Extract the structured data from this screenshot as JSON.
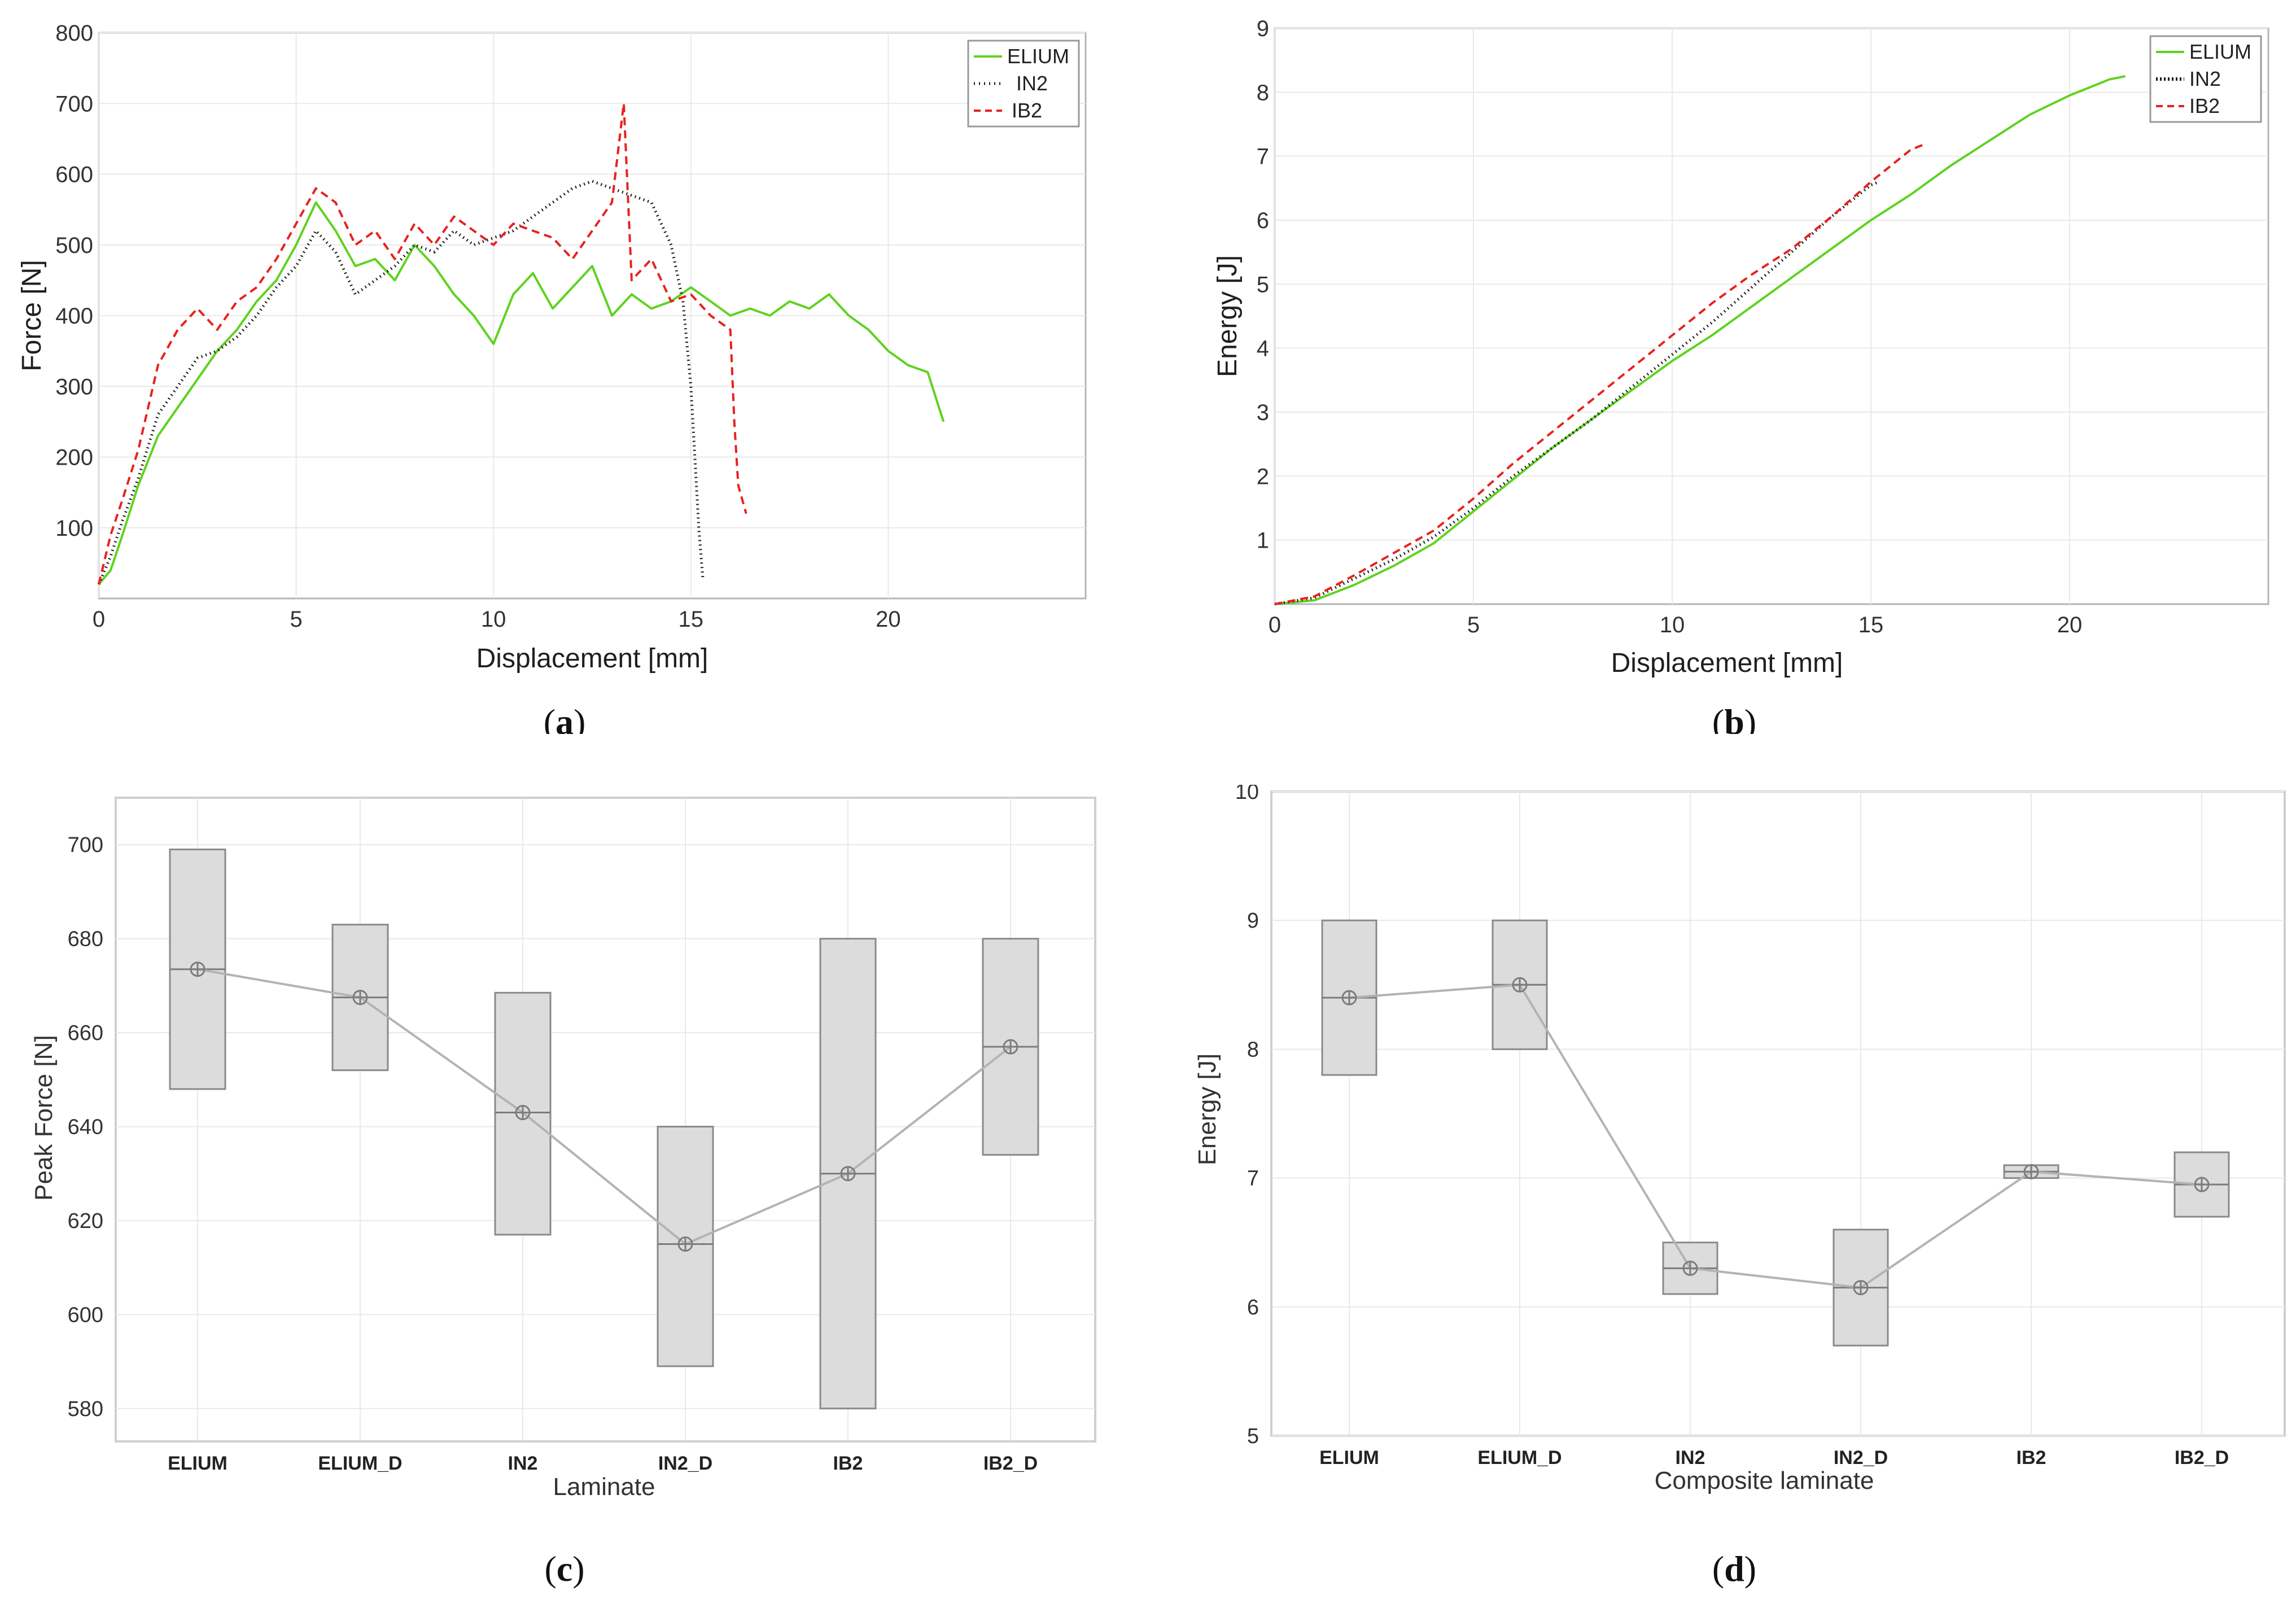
{
  "chart_data": [
    {
      "id": "a",
      "type": "line",
      "caption": "a",
      "xlabel": "Displacement [mm]",
      "ylabel": "Force [N]",
      "xlim": [
        0,
        25
      ],
      "ylim": [
        0,
        800
      ],
      "xticks": [
        0,
        5,
        10,
        15,
        20
      ],
      "yticks": [
        100,
        200,
        300,
        400,
        500,
        600,
        700,
        800
      ],
      "legend_position": "top-right",
      "series": [
        {
          "name": "ELIUM",
          "color": "#5fd21f",
          "style": "solid",
          "x": [
            0.0,
            0.3,
            0.6,
            1.0,
            1.5,
            2.0,
            2.5,
            3.0,
            3.5,
            4.0,
            4.5,
            5.0,
            5.5,
            6.0,
            6.5,
            7.0,
            7.5,
            8.0,
            8.5,
            9.0,
            9.5,
            10.0,
            10.5,
            11.0,
            11.5,
            12.0,
            12.5,
            13.0,
            13.5,
            14.0,
            14.5,
            15.0,
            15.5,
            16.0,
            16.5,
            17.0,
            17.5,
            18.0,
            18.5,
            19.0,
            19.5,
            20.0,
            20.5,
            21.0,
            21.4
          ],
          "y": [
            20,
            40,
            90,
            160,
            230,
            270,
            310,
            350,
            380,
            420,
            450,
            500,
            560,
            520,
            470,
            480,
            450,
            500,
            470,
            430,
            400,
            360,
            430,
            460,
            410,
            440,
            470,
            400,
            430,
            410,
            420,
            440,
            420,
            400,
            410,
            400,
            420,
            410,
            430,
            400,
            380,
            350,
            330,
            320,
            250
          ]
        },
        {
          "name": "IN2",
          "color": "#1a1a1a",
          "style": "dotted",
          "x": [
            0.0,
            0.3,
            0.6,
            1.0,
            1.5,
            2.0,
            2.5,
            3.0,
            3.5,
            4.0,
            4.5,
            5.0,
            5.5,
            6.0,
            6.5,
            7.0,
            7.5,
            8.0,
            8.5,
            9.0,
            9.5,
            10.0,
            10.5,
            11.0,
            11.5,
            12.0,
            12.5,
            13.0,
            13.5,
            14.0,
            14.5,
            14.8,
            15.0,
            15.1,
            15.2,
            15.3
          ],
          "y": [
            20,
            60,
            110,
            170,
            260,
            300,
            340,
            350,
            370,
            400,
            440,
            470,
            520,
            490,
            430,
            450,
            470,
            500,
            490,
            520,
            500,
            510,
            520,
            540,
            560,
            580,
            590,
            580,
            570,
            560,
            500,
            420,
            300,
            200,
            100,
            30
          ]
        },
        {
          "name": "IB2",
          "color": "#e8211f",
          "style": "dashed",
          "x": [
            0.0,
            0.3,
            0.6,
            1.0,
            1.5,
            2.0,
            2.5,
            3.0,
            3.5,
            4.0,
            4.5,
            5.0,
            5.5,
            6.0,
            6.5,
            7.0,
            7.5,
            8.0,
            8.5,
            9.0,
            9.5,
            10.0,
            10.5,
            11.0,
            11.5,
            12.0,
            12.5,
            13.0,
            13.3,
            13.5,
            14.0,
            14.5,
            15.0,
            15.5,
            16.0,
            16.1,
            16.2,
            16.4
          ],
          "y": [
            20,
            90,
            140,
            210,
            330,
            380,
            410,
            380,
            420,
            440,
            480,
            530,
            580,
            560,
            500,
            520,
            480,
            530,
            500,
            540,
            520,
            500,
            530,
            520,
            510,
            480,
            520,
            560,
            700,
            450,
            480,
            420,
            430,
            400,
            380,
            250,
            160,
            120
          ]
        }
      ]
    },
    {
      "id": "b",
      "type": "line",
      "caption": "b",
      "xlabel": "Displacement [mm]",
      "ylabel": "Energy [J]",
      "xlim": [
        0,
        25
      ],
      "ylim": [
        0,
        9
      ],
      "xticks": [
        0,
        5,
        10,
        15,
        20
      ],
      "yticks": [
        1,
        2,
        3,
        4,
        5,
        6,
        7,
        8,
        9
      ],
      "legend_position": "top-right",
      "series": [
        {
          "name": "ELIUM",
          "color": "#5fd21f",
          "style": "solid",
          "x": [
            0,
            1,
            2,
            3,
            4,
            5,
            6,
            7,
            8,
            9,
            10,
            11,
            12,
            13,
            14,
            15,
            16,
            17,
            18,
            19,
            20,
            21,
            21.4
          ],
          "y": [
            0,
            0.06,
            0.3,
            0.6,
            0.95,
            1.45,
            1.95,
            2.45,
            2.9,
            3.35,
            3.8,
            4.2,
            4.65,
            5.1,
            5.55,
            6.0,
            6.4,
            6.85,
            7.25,
            7.65,
            7.95,
            8.2,
            8.25
          ]
        },
        {
          "name": "IN2",
          "color": "#1a1a1a",
          "style": "dotted",
          "x": [
            0,
            1,
            2,
            3,
            4,
            5,
            6,
            7,
            8,
            9,
            10,
            11,
            12,
            13,
            14,
            15,
            15.2
          ],
          "y": [
            0,
            0.1,
            0.4,
            0.7,
            1.05,
            1.5,
            2.0,
            2.45,
            2.9,
            3.4,
            3.9,
            4.4,
            4.95,
            5.5,
            6.05,
            6.55,
            6.6
          ]
        },
        {
          "name": "IB2",
          "color": "#e8211f",
          "style": "dashed",
          "x": [
            0,
            1,
            2,
            3,
            4,
            5,
            6,
            7,
            8,
            9,
            10,
            11,
            12,
            13,
            14,
            15,
            16,
            16.4
          ],
          "y": [
            0,
            0.12,
            0.45,
            0.8,
            1.15,
            1.65,
            2.2,
            2.7,
            3.2,
            3.7,
            4.2,
            4.7,
            5.15,
            5.55,
            6.05,
            6.6,
            7.1,
            7.2
          ]
        }
      ]
    },
    {
      "id": "c",
      "type": "box",
      "caption": "c",
      "xlabel": "Laminate",
      "ylabel": "Peak Force [N]",
      "ylim": [
        573,
        710
      ],
      "yticks": [
        580,
        600,
        620,
        640,
        660,
        680,
        700
      ],
      "categories": [
        "ELIUM",
        "ELIUM_D",
        "IN2",
        "IN2_D",
        "IB2",
        "IB2_D"
      ],
      "boxes": [
        {
          "low": 648,
          "high": 699,
          "median": 673.5,
          "mean": 673.5
        },
        {
          "low": 652,
          "high": 683,
          "median": 667.5,
          "mean": 667.5
        },
        {
          "low": 617,
          "high": 668.5,
          "median": 643,
          "mean": 643
        },
        {
          "low": 589,
          "high": 640,
          "median": 615,
          "mean": 615
        },
        {
          "low": 580,
          "high": 680,
          "median": 630,
          "mean": 630
        },
        {
          "low": 634,
          "high": 680,
          "median": 657,
          "mean": 657
        }
      ]
    },
    {
      "id": "d",
      "type": "box",
      "caption": "d",
      "xlabel": "Composite laminate",
      "ylabel": "Energy [J]",
      "ylim": [
        5,
        10
      ],
      "yticks": [
        5,
        6,
        7,
        8,
        9,
        10
      ],
      "categories": [
        "ELIUM",
        "ELIUM_D",
        "IN2",
        "IN2_D",
        "IB2",
        "IB2_D"
      ],
      "boxes": [
        {
          "low": 7.8,
          "high": 9.0,
          "median": 8.4,
          "mean": 8.4
        },
        {
          "low": 8.0,
          "high": 9.0,
          "median": 8.5,
          "mean": 8.5
        },
        {
          "low": 6.1,
          "high": 6.5,
          "median": 6.3,
          "mean": 6.3
        },
        {
          "low": 5.7,
          "high": 6.6,
          "median": 6.15,
          "mean": 6.15
        },
        {
          "low": 7.0,
          "high": 7.1,
          "median": 7.05,
          "mean": 7.05
        },
        {
          "low": 6.7,
          "high": 7.2,
          "median": 6.95,
          "mean": 6.95
        }
      ]
    }
  ]
}
